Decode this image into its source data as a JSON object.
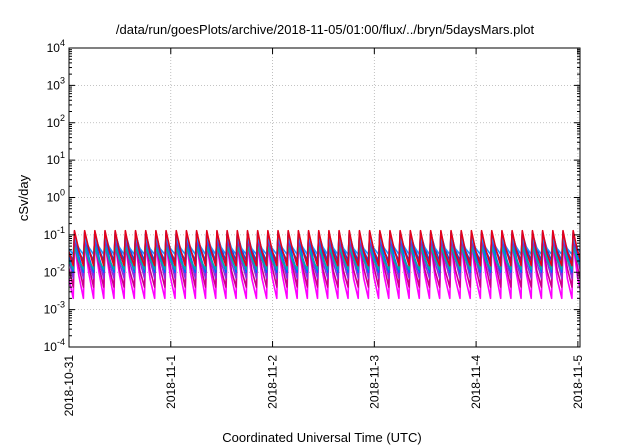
{
  "chart_data": {
    "type": "line",
    "title": "/data/run/goesPlots/archive/2018-11-05/01:00/flux/../bryn/5daysMars.plot",
    "xlabel": "Coordinated Universal Time (UTC)",
    "ylabel": "cSv/day",
    "yscale": "log",
    "ylim": [
      0.0001,
      10000
    ],
    "xlim": [
      "2018-10-31",
      "2018-11-05T00:30"
    ],
    "grid": true,
    "y_ticks": [
      {
        "base": "10",
        "exp": "-4",
        "value": 0.0001
      },
      {
        "base": "10",
        "exp": "-3",
        "value": 0.001
      },
      {
        "base": "10",
        "exp": "-2",
        "value": 0.01
      },
      {
        "base": "10",
        "exp": "-1",
        "value": 0.1
      },
      {
        "base": "10",
        "exp": "0",
        "value": 1
      },
      {
        "base": "10",
        "exp": "1",
        "value": 10
      },
      {
        "base": "10",
        "exp": "2",
        "value": 100
      },
      {
        "base": "10",
        "exp": "3",
        "value": 1000
      },
      {
        "base": "10",
        "exp": "4",
        "value": 10000
      }
    ],
    "x_ticks": [
      "2018-10-31",
      "2018-11-1",
      "2018-11-2",
      "2018-11-3",
      "2018-11-4",
      "2018-11-5"
    ],
    "x_tick_dates": [
      "2018-10-31",
      "2018-11-01",
      "2018-11-02",
      "2018-11-03",
      "2018-11-04",
      "2018-11-05"
    ],
    "pattern": {
      "cycles_per_day": 10,
      "first_peak": "2018-10-31T01:00"
    },
    "series": [
      {
        "color": "#ff00ff",
        "peak": 0.06,
        "trough": 0.002
      },
      {
        "color": "#cc0088",
        "peak": 0.07,
        "trough": 0.004
      },
      {
        "color": "#8a2be2",
        "peak": 0.1,
        "trough": 0.007
      },
      {
        "color": "#0066ff",
        "peak": 0.12,
        "trough": 0.01
      },
      {
        "color": "#00aaaa",
        "peak": 0.05,
        "trough": 0.012
      },
      {
        "color": "#2244cc",
        "peak": 0.11,
        "trough": 0.02
      },
      {
        "color": "#1e90ff",
        "peak": 0.08,
        "trough": 0.03
      },
      {
        "color": "#e3001b",
        "peak": 0.13,
        "trough": 0.015
      }
    ]
  }
}
